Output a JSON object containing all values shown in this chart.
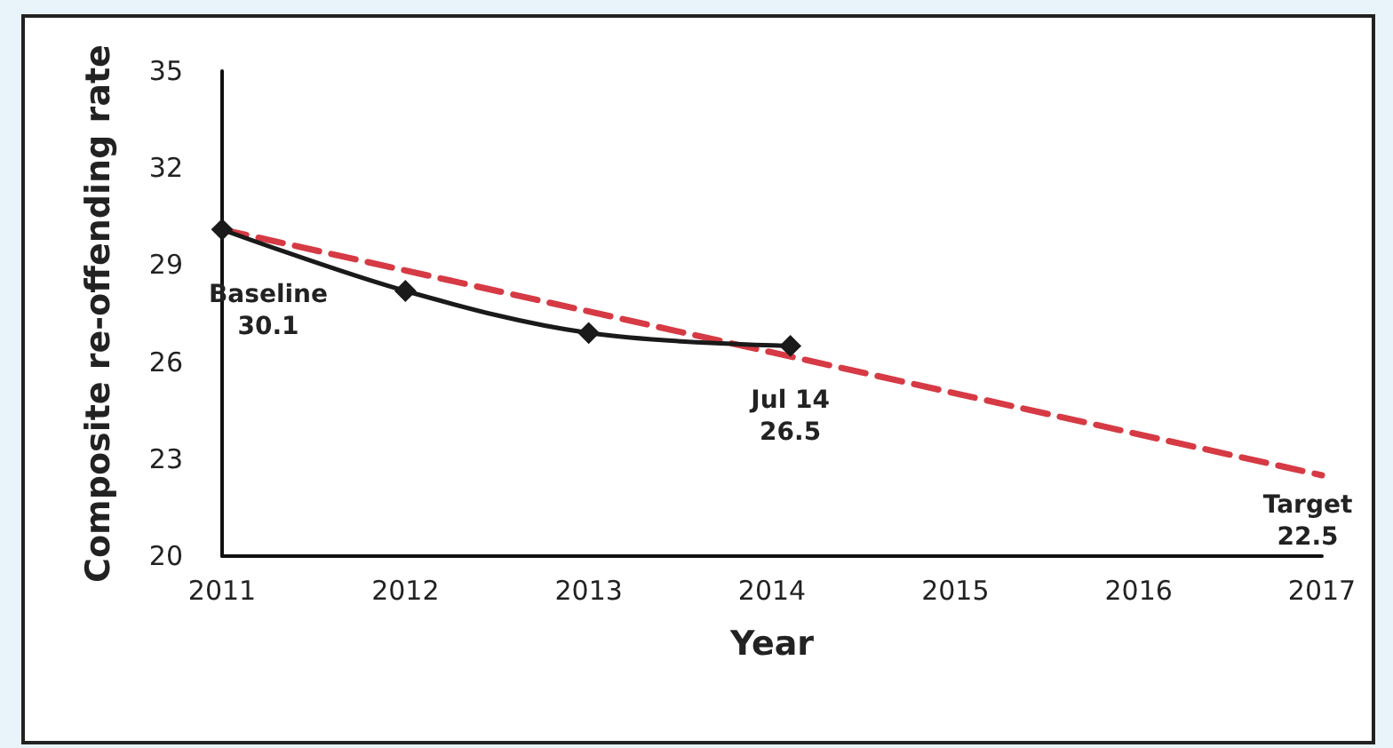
{
  "chart_data": {
    "type": "line",
    "xlabel": "Year",
    "ylabel": "Composite re-offending rate",
    "xlim": [
      2011,
      2017
    ],
    "xticks": [
      2011,
      2012,
      2013,
      2014,
      2015,
      2016,
      2017
    ],
    "ylim": [
      20,
      35
    ],
    "yticks": [
      20,
      23,
      26,
      29,
      32,
      35
    ],
    "grid": false,
    "series": [
      {
        "color": "#1a1a1a",
        "x": [
          2011,
          2012,
          2013,
          2014.1
        ],
        "values": [
          30.1,
          28.2,
          26.9,
          26.5
        ],
        "marker": "diamond",
        "line_style": "solid"
      },
      {
        "color": "#d63a44",
        "x": [
          2011,
          2017
        ],
        "values": [
          30.1,
          22.5
        ],
        "marker": "none",
        "line_style": "dashed"
      }
    ],
    "annotations": [
      {
        "text": "Baseline\n30.1",
        "x": 2011,
        "y": 30.1
      },
      {
        "text": "Jul 14\n26.5",
        "x": 2014.1,
        "y": 26.5
      },
      {
        "text": "Target\n22.5",
        "x": 2017,
        "y": 22.5
      }
    ]
  }
}
